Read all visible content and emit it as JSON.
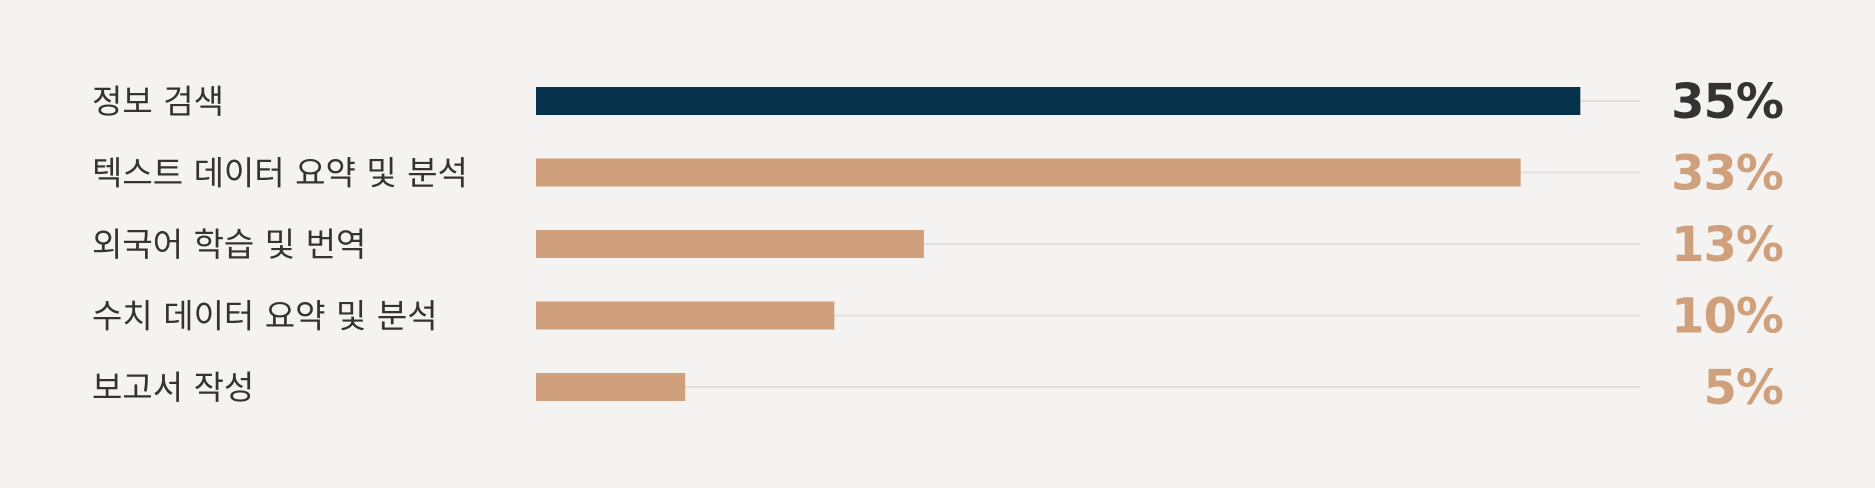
{
  "chart_data": {
    "type": "bar",
    "orientation": "horizontal",
    "categories": [
      "정보 검색",
      "텍스트 데이터 요약 및 분석",
      "외국어 학습 및 번역",
      "수치 데이터 요약 및 분석",
      "보고서 작성"
    ],
    "values": [
      35,
      33,
      13,
      10,
      5
    ],
    "value_labels": [
      "35%",
      "33%",
      "13%",
      "10%",
      "5%"
    ],
    "unit": "%",
    "xlim": [
      0,
      37
    ],
    "highlight_index": 0,
    "grid": false,
    "title": "",
    "xlabel": "",
    "ylabel": ""
  },
  "colors": {
    "background": "#f5f3f1",
    "highlight_bar": "#06324c",
    "bar": "#cfa07b",
    "track": "#e2dfdc",
    "highlight_value": "#333333",
    "value": "#cfa07b",
    "category_text": "#333333"
  }
}
